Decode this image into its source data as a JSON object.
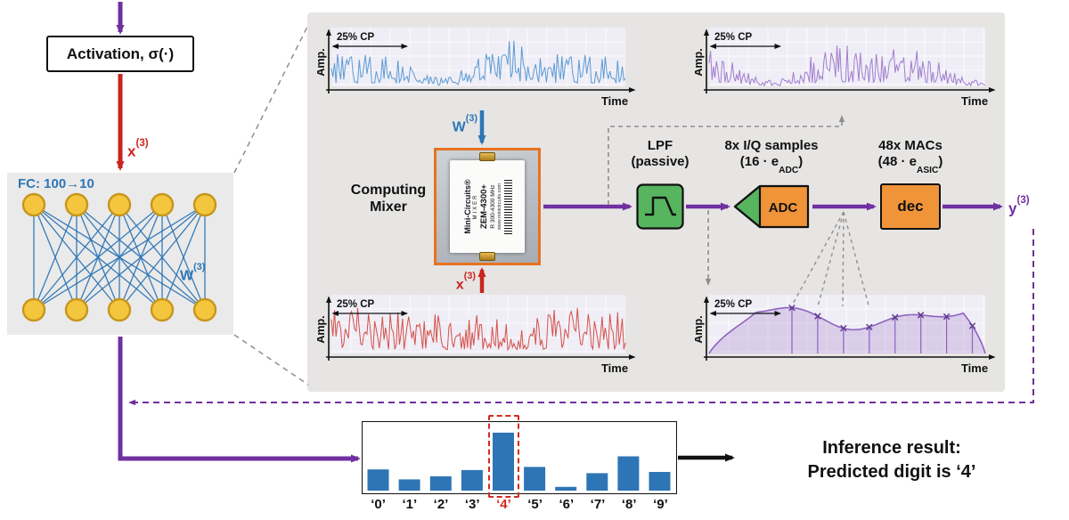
{
  "colors": {
    "purple": "#7030a0",
    "red": "#c9251f",
    "blue": "#2e75b6",
    "dash_gray": "#8f8f8f",
    "green": "#57b45f",
    "orange": "#f0943a",
    "node_fill": "#f3c63e",
    "node_stroke": "#c8961d",
    "panel_bg": "#e6e5e4",
    "plot_bg": "#efedf6",
    "highlight_red": "#d42a20"
  },
  "flow": {
    "activation_label": "Activation, σ(·)",
    "fc_label": "FC: 100→10",
    "inference_line1": "Inference result:",
    "inference_line2": "Predicted digit is ‘4’"
  },
  "signals": {
    "x_base": "x",
    "w_base": "W",
    "y_base": "y",
    "sup": "(3)"
  },
  "panel": {
    "plots": {
      "amp_label": "Amp.",
      "time_label": "Time",
      "cp_label": "25% CP",
      "items": [
        {
          "id": "w3-waveform",
          "color": "#5b9bd5",
          "kind": "noise",
          "seed": 7
        },
        {
          "id": "mixer-output-waveform",
          "color": "#a27ecf",
          "kind": "noise",
          "seed": 13
        },
        {
          "id": "x3-waveform",
          "color": "#d6504a",
          "kind": "noise",
          "seed": 29,
          "tone": "uniform"
        },
        {
          "id": "sampled-output-waveform",
          "color": "#8e62be",
          "kind": "sampled",
          "sample_count": 8
        }
      ]
    },
    "mixer": {
      "caption_line1": "Computing",
      "caption_line2": "Mixer",
      "chip_brand": "Mini-Circuits®",
      "chip_type": "MIXER",
      "chip_model": "ZEM-4300+",
      "chip_range": "R 300-4300 MHz",
      "chip_url": "www.minicircuits.com"
    },
    "lpf": {
      "title_line1": "LPF",
      "title_line2": "(passive)"
    },
    "adc": {
      "box_label": "ADC",
      "title_line1": "8x I/Q samples",
      "title_pre": "(16 · e",
      "title_sub": "ADC",
      "title_post": ")"
    },
    "dec": {
      "box_label": "dec",
      "title_line1": "48x MACs",
      "title_pre": "(48 · e",
      "title_sub": "ASIC",
      "title_post": ")"
    }
  },
  "chart_data": {
    "type": "bar",
    "categories": [
      "‘0’",
      "‘1’",
      "‘2’",
      "‘3’",
      "‘4’",
      "‘5’",
      "‘6’",
      "‘7’",
      "‘8’",
      "‘9’"
    ],
    "values": [
      0.34,
      0.18,
      0.23,
      0.33,
      0.93,
      0.38,
      0.06,
      0.28,
      0.55,
      0.3
    ],
    "highlight_index": 4,
    "bar_color": "#2e75b6"
  }
}
